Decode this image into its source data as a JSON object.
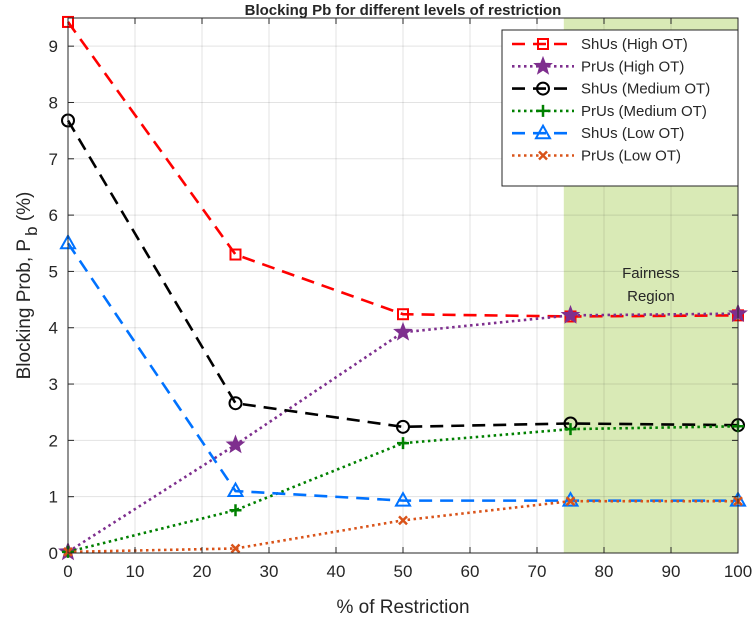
{
  "chart_data": {
    "type": "line",
    "title": "Blocking Pb for different levels of restriction",
    "xlabel": "% of Restriction",
    "ylabel": {
      "main": "Blocking Prob, P",
      "subscript": "b",
      "unit": " (%)"
    },
    "xlim": [
      0,
      100
    ],
    "ylim": [
      0,
      9.5
    ],
    "xticks": [
      0,
      10,
      20,
      30,
      40,
      50,
      60,
      70,
      80,
      90,
      100
    ],
    "yticks": [
      0,
      1,
      2,
      3,
      4,
      5,
      6,
      7,
      8,
      9
    ],
    "grid": true,
    "legend_position": "top-right",
    "shaded_region": {
      "x_range": [
        74,
        100
      ],
      "label_lines": [
        "Fairness",
        "Region"
      ],
      "color": "#d9eab6"
    },
    "x": [
      0,
      25,
      50,
      75,
      100
    ],
    "series": [
      {
        "name": "ShUs (High OT)",
        "values": [
          9.43,
          5.3,
          4.24,
          4.2,
          4.22
        ],
        "color": "#ff0000",
        "dash": "dashed",
        "marker": "square"
      },
      {
        "name": "PrUs (High OT)",
        "values": [
          0.02,
          1.92,
          3.92,
          4.22,
          4.25
        ],
        "color": "#7e2f8e",
        "dash": "dotted",
        "marker": "star"
      },
      {
        "name": "ShUs (Medium OT)",
        "values": [
          7.68,
          2.66,
          2.24,
          2.3,
          2.27
        ],
        "color": "#000000",
        "dash": "dashed",
        "marker": "circle"
      },
      {
        "name": "PrUs (Medium OT)",
        "values": [
          0.02,
          0.76,
          1.95,
          2.2,
          2.25
        ],
        "color": "#008000",
        "dash": "dotted",
        "marker": "plus"
      },
      {
        "name": "ShUs (Low OT)",
        "values": [
          5.5,
          1.1,
          0.93,
          0.93,
          0.93
        ],
        "color": "#0072ff",
        "dash": "dashed",
        "marker": "triangle"
      },
      {
        "name": "PrUs (Low OT)",
        "values": [
          0.02,
          0.08,
          0.58,
          0.92,
          0.92
        ],
        "color": "#d95319",
        "dash": "dotted",
        "marker": "x"
      }
    ]
  }
}
